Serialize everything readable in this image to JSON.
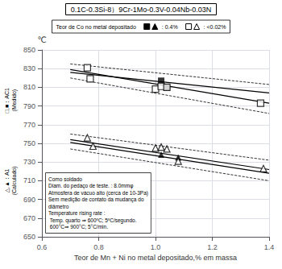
{
  "chart_data": {
    "type": "scatter",
    "title": "0.1C-0.3Si-8）9Cr-1Mo-0.3V-0.04Nb-0.03N",
    "xlabel": "Teor de Mn + Ni no metal depositado,% em massa",
    "ylabel": "℃",
    "group_labels": [
      "□,■：AC1\n(Medido)",
      "△,▲：A1\n(Calculado)"
    ],
    "annotation": "Como soldado\nDiam. do pedaço de teste. : 8.0mmφ\nAtmosfera de vácuo alto (cerca de 10-3Pa)\nSem medição de contato da mudança do\ndiâmetro\nTemperature rising rate :\n Temp. quarto ⇒ 600ºC; 5ºC/segundo.\n 600°C⇒ 900°C; 5°C/min.",
    "legend_title": "Teor de Co no metal depositado",
    "legend": "top",
    "grid": true,
    "xlim": [
      0.6,
      1.4
    ],
    "ylim": [
      650,
      850
    ],
    "xticks": [
      0.6,
      0.8,
      {
        "value": 1.0,
        "label": "1.0"
      },
      1.2,
      1.4
    ],
    "yticks": [
      650,
      670,
      690,
      710,
      730,
      750,
      770,
      790,
      810,
      830,
      850
    ],
    "series": [
      {
        "type": "line",
        "color": "#000000",
        "line_style": "solid",
        "x": [
          0.7,
          1.4
        ],
        "values": [
          826,
          804
        ]
      },
      {
        "type": "line",
        "color": "#000000",
        "line_style": "solid",
        "x": [
          0.7,
          1.4
        ],
        "values": [
          829,
          793
        ]
      },
      {
        "type": "line",
        "color": "#000000",
        "line_style": "dashed",
        "x": [
          0.7,
          1.4
        ],
        "values": [
          835,
          813
        ]
      },
      {
        "type": "line",
        "color": "#000000",
        "line_style": "dashed",
        "x": [
          0.7,
          1.4
        ],
        "values": [
          820,
          782
        ]
      },
      {
        "type": "line",
        "color": "#000000",
        "line_style": "solid",
        "x": [
          0.7,
          1.4
        ],
        "values": [
          751,
          718
        ]
      },
      {
        "type": "line",
        "color": "#000000",
        "line_style": "solid",
        "x": [
          0.7,
          1.4
        ],
        "values": [
          754,
          722
        ]
      },
      {
        "type": "line",
        "color": "#000000",
        "line_style": "dashed",
        "x": [
          0.7,
          1.4
        ],
        "values": [
          760,
          732
        ]
      },
      {
        "type": "line",
        "color": "#000000",
        "line_style": "dashed",
        "x": [
          0.7,
          1.4
        ],
        "values": [
          744,
          710
        ]
      },
      {
        "type": "scatter",
        "name": ": 0.4%",
        "color": "#000000",
        "marker": "square",
        "x": [
          1.02,
          1.04
        ],
        "values": [
          817,
          810
        ]
      },
      {
        "type": "scatter",
        "name": ": <0.02%",
        "color": "#000000",
        "marker": "square-open",
        "x": [
          0.76,
          0.77,
          1.0,
          1.02,
          1.04,
          1.37
        ],
        "values": [
          831,
          819,
          808,
          811,
          810,
          793
        ]
      },
      {
        "type": "scatter",
        "name": ": 0.4%",
        "color": "#000000",
        "marker": "triangle",
        "x": [
          1.02,
          1.08
        ],
        "values": [
          738,
          735
        ]
      },
      {
        "type": "scatter",
        "name": ": <0.02%",
        "color": "#000000",
        "marker": "triangle-open",
        "x": [
          0.76,
          0.78,
          1.0,
          1.02,
          1.04,
          1.08,
          1.38
        ],
        "values": [
          756,
          747,
          745,
          746,
          744,
          731,
          723
        ]
      }
    ]
  }
}
